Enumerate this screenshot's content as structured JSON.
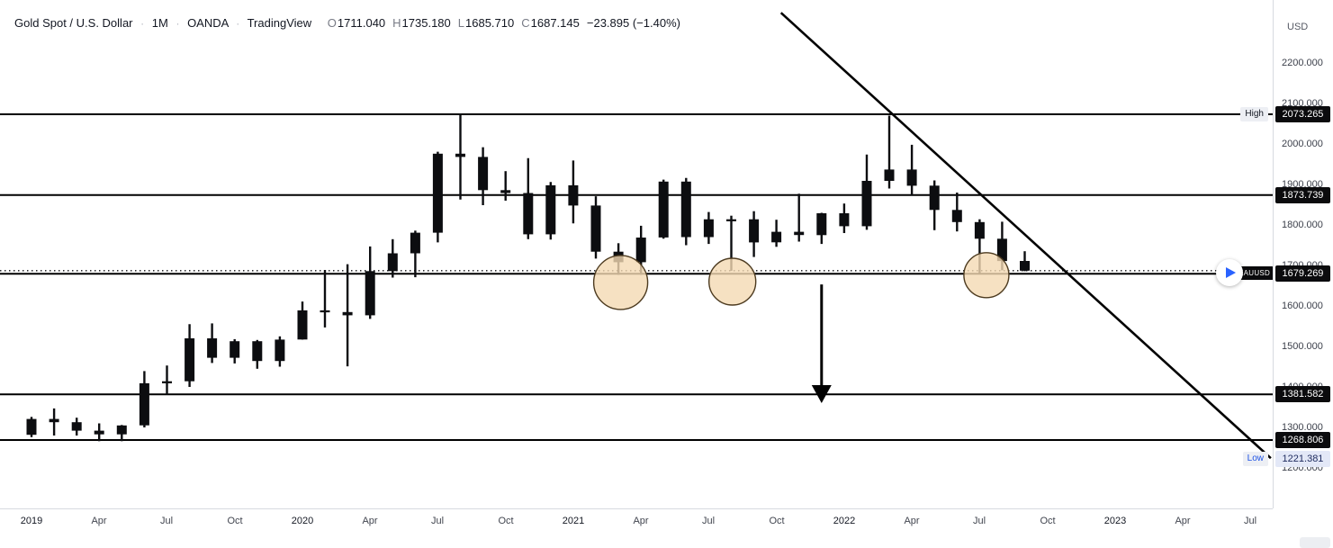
{
  "colors": {
    "background": "#ffffff",
    "bar": "#0c0d10",
    "drawing": "#000000",
    "axis_text": "#3c404b",
    "badge_bg": "#0b0b0d",
    "badge_text": "#ffffff",
    "tag_bg": "#edeff4",
    "accent_blue": "#1e53e5",
    "play_blue": "#2962ff",
    "ellipse_fill": "rgba(244,217,179,0.8)",
    "ellipse_stroke": "#4d3b20"
  },
  "legend": {
    "symbol": "Gold Spot / U.S. Dollar",
    "separator": "·",
    "interval": "1M",
    "exchange": "OANDA",
    "brand": "TradingView",
    "ohlc": [
      {
        "k": "O",
        "v": "1711.040"
      },
      {
        "k": "H",
        "v": "1735.180"
      },
      {
        "k": "L",
        "v": "1685.710"
      },
      {
        "k": "C",
        "v": "1687.145"
      }
    ],
    "change": "−23.895 (−1.40%)"
  },
  "price_axis": {
    "currency": "USD",
    "ticks": [
      "2200.000",
      "2100.000",
      "2000.000",
      "1900.000",
      "1800.000",
      "1700.000",
      "1600.000",
      "1500.000",
      "1400.000",
      "1300.000",
      "1200.000"
    ]
  },
  "time_axis": {
    "ticks": [
      {
        "label": "2019",
        "m": 0,
        "major": true
      },
      {
        "label": "Apr",
        "m": 3
      },
      {
        "label": "Jul",
        "m": 6
      },
      {
        "label": "Oct",
        "m": 9
      },
      {
        "label": "2020",
        "m": 12,
        "major": true
      },
      {
        "label": "Apr",
        "m": 15
      },
      {
        "label": "Jul",
        "m": 18
      },
      {
        "label": "Oct",
        "m": 21
      },
      {
        "label": "2021",
        "m": 24,
        "major": true
      },
      {
        "label": "Apr",
        "m": 27
      },
      {
        "label": "Jul",
        "m": 30
      },
      {
        "label": "Oct",
        "m": 33
      },
      {
        "label": "2022",
        "m": 36,
        "major": true
      },
      {
        "label": "Apr",
        "m": 39
      },
      {
        "label": "Jul",
        "m": 42
      },
      {
        "label": "Oct",
        "m": 45
      },
      {
        "label": "2023",
        "m": 48,
        "major": true
      },
      {
        "label": "Apr",
        "m": 51
      },
      {
        "label": "Jul",
        "m": 54
      }
    ]
  },
  "replay": {
    "symbol_tag": "XAUUSD"
  },
  "chart_data": {
    "type": "candlestick",
    "title": "Gold Spot / U.S. Dollar",
    "interval": "1M",
    "provider": "OANDA",
    "ylim": [
      1128,
      2354
    ],
    "bars": [
      [
        "2019-01",
        1282,
        1326,
        1276,
        1321
      ],
      [
        "2019-02",
        1321,
        1347,
        1280,
        1313
      ],
      [
        "2019-03",
        1313,
        1324,
        1280,
        1292
      ],
      [
        "2019-04",
        1292,
        1310,
        1266,
        1283
      ],
      [
        "2019-05",
        1283,
        1306,
        1266,
        1305
      ],
      [
        "2019-06",
        1305,
        1439,
        1300,
        1409
      ],
      [
        "2019-07",
        1409,
        1453,
        1381,
        1414
      ],
      [
        "2019-08",
        1414,
        1555,
        1400,
        1520
      ],
      [
        "2019-09",
        1520,
        1557,
        1459,
        1472
      ],
      [
        "2019-10",
        1472,
        1518,
        1458,
        1513
      ],
      [
        "2019-11",
        1513,
        1516,
        1445,
        1464
      ],
      [
        "2019-12",
        1464,
        1525,
        1450,
        1517
      ],
      [
        "2020-01",
        1517,
        1611,
        1517,
        1589
      ],
      [
        "2020-02",
        1589,
        1689,
        1547,
        1585
      ],
      [
        "2020-03",
        1585,
        1703,
        1451,
        1577
      ],
      [
        "2020-04",
        1577,
        1747,
        1568,
        1686
      ],
      [
        "2020-05",
        1686,
        1765,
        1670,
        1730
      ],
      [
        "2020-06",
        1730,
        1786,
        1671,
        1781
      ],
      [
        "2020-07",
        1781,
        1981,
        1757,
        1976
      ],
      [
        "2020-08",
        1976,
        2075,
        1863,
        1968
      ],
      [
        "2020-09",
        1968,
        1992,
        1849,
        1886
      ],
      [
        "2020-10",
        1886,
        1933,
        1860,
        1879
      ],
      [
        "2020-11",
        1879,
        1965,
        1765,
        1777
      ],
      [
        "2020-12",
        1777,
        1906,
        1764,
        1898
      ],
      [
        "2021-01",
        1898,
        1959,
        1804,
        1848
      ],
      [
        "2021-02",
        1848,
        1871,
        1717,
        1734
      ],
      [
        "2021-03",
        1734,
        1755,
        1677,
        1708
      ],
      [
        "2021-04",
        1708,
        1798,
        1677,
        1769
      ],
      [
        "2021-05",
        1769,
        1912,
        1766,
        1907
      ],
      [
        "2021-06",
        1907,
        1916,
        1750,
        1770
      ],
      [
        "2021-07",
        1770,
        1832,
        1753,
        1814
      ],
      [
        "2021-08",
        1814,
        1823,
        1687,
        1814
      ],
      [
        "2021-09",
        1814,
        1834,
        1721,
        1757
      ],
      [
        "2021-10",
        1757,
        1813,
        1746,
        1783
      ],
      [
        "2021-11",
        1783,
        1877,
        1759,
        1775
      ],
      [
        "2021-12",
        1775,
        1830,
        1753,
        1829
      ],
      [
        "2022-01",
        1829,
        1853,
        1780,
        1797
      ],
      [
        "2022-02",
        1797,
        1974,
        1788,
        1909
      ],
      [
        "2022-03",
        1909,
        2070,
        1890,
        1937
      ],
      [
        "2022-04",
        1937,
        1998,
        1872,
        1897
      ],
      [
        "2022-05",
        1897,
        1910,
        1787,
        1837
      ],
      [
        "2022-06",
        1837,
        1880,
        1784,
        1807
      ],
      [
        "2022-07",
        1807,
        1814,
        1681,
        1766
      ],
      [
        "2022-08",
        1766,
        1808,
        1688,
        1711
      ],
      [
        "2022-09",
        1711.04,
        1735.18,
        1685.71,
        1687.145
      ]
    ],
    "price_lines": [
      {
        "price": 2073.265,
        "text": "2073.265",
        "tag": "High",
        "line": true
      },
      {
        "price": 1873.739,
        "text": "1873.739",
        "line": true
      },
      {
        "price": 1679.269,
        "text": "1679.269",
        "line": true
      },
      {
        "price": 1381.582,
        "text": "1381.582",
        "line": true
      },
      {
        "price": 1268.806,
        "text": "1268.806",
        "line": true
      },
      {
        "price": 1221.381,
        "text": "1221.381",
        "tag": "Low",
        "line": false,
        "accent": true
      }
    ],
    "last_price": {
      "value": 1687.145,
      "style": "dotted"
    },
    "trendline": {
      "from_month": 33.2,
      "from_price": 2324,
      "to_month": 54.9,
      "to_price": 1224
    },
    "ellipses": [
      {
        "month": 26.1,
        "price": 1658,
        "radius": 30
      },
      {
        "month": 31.05,
        "price": 1660,
        "radius": 26
      },
      {
        "month": 42.3,
        "price": 1676,
        "radius": 25
      }
    ],
    "arrow": {
      "month": 35,
      "from_price": 1653,
      "to_price": 1360
    }
  }
}
